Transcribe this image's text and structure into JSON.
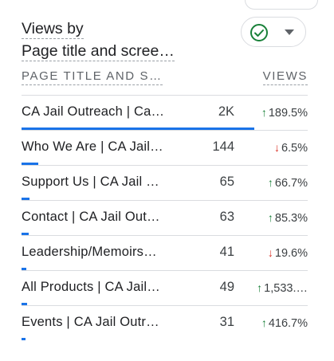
{
  "card": {
    "title_line1": "Views by",
    "title_line2": "Page title and scree…",
    "check_icon_color": "#188038",
    "accent_color": "#1a73e8"
  },
  "table": {
    "col_name": "PAGE TITLE AND S…",
    "col_views": "VIEWS",
    "rows": [
      {
        "title": "CA Jail Outreach | Ca…",
        "views": "2K",
        "change": "189.5%",
        "direction": "up",
        "bar_fraction": 1.0
      },
      {
        "title": "Who We Are | CA Jail…",
        "views": "144",
        "change": "6.5%",
        "direction": "down",
        "bar_fraction": 0.072
      },
      {
        "title": "Support Us | CA Jail …",
        "views": "65",
        "change": "66.7%",
        "direction": "up",
        "bar_fraction": 0.033
      },
      {
        "title": "Contact | CA Jail Out…",
        "views": "63",
        "change": "85.3%",
        "direction": "up",
        "bar_fraction": 0.032
      },
      {
        "title": "Leadership/Memoirs…",
        "views": "41",
        "change": "19.6%",
        "direction": "down",
        "bar_fraction": 0.021
      },
      {
        "title": "All Products | CA Jail…",
        "views": "49",
        "change": "1,533.…",
        "direction": "up",
        "bar_fraction": 0.025
      },
      {
        "title": "Events | CA Jail Outr…",
        "views": "31",
        "change": "416.7%",
        "direction": "up",
        "bar_fraction": 0.016
      }
    ]
  }
}
